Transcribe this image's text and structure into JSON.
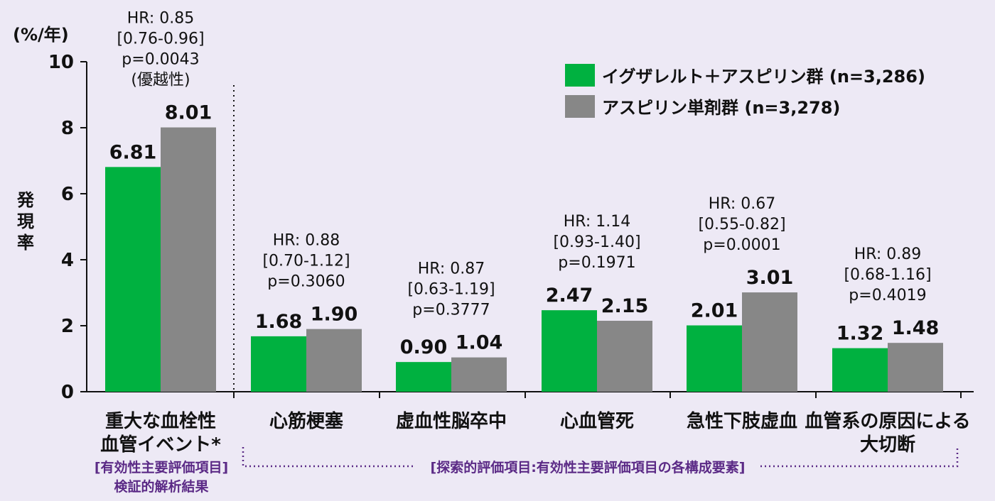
{
  "chart_data": {
    "type": "bar",
    "unit": "(%/年)",
    "ylabel": "発現率",
    "ylim": [
      0,
      10
    ],
    "yticks": [
      "0",
      "2",
      "4",
      "6",
      "8",
      "10"
    ],
    "categories": [
      [
        "重大な血栓性",
        "血管イベント*"
      ],
      [
        "心筋梗塞"
      ],
      [
        "虚血性脳卒中"
      ],
      [
        "心血管死"
      ],
      [
        "急性下肢虚血"
      ],
      [
        "血管系の原因による",
        "大切断"
      ]
    ],
    "series": [
      {
        "name": "イグザレルト＋アスピリン群 (n=3,286)",
        "color": "#00b140",
        "values": [
          6.81,
          1.68,
          0.9,
          2.47,
          2.01,
          1.32
        ],
        "labels": [
          "6.81",
          "1.68",
          "0.90",
          "2.47",
          "2.01",
          "1.32"
        ]
      },
      {
        "name": "アスピリン単剤群 (n=3,278)",
        "color": "#878787",
        "values": [
          8.01,
          1.9,
          1.04,
          2.15,
          3.01,
          1.48
        ],
        "labels": [
          "8.01",
          "1.90",
          "1.04",
          "2.15",
          "3.01",
          "1.48"
        ]
      }
    ],
    "hr_annotations": [
      [
        "HR: 0.85",
        "[0.76-0.96]",
        "p=0.0043",
        "(優越性)"
      ],
      [
        "HR: 0.88",
        "[0.70-1.12]",
        "p=0.3060"
      ],
      [
        "HR: 0.87",
        "[0.63-1.19]",
        "p=0.3777"
      ],
      [
        "HR: 1.14",
        "[0.93-1.40]",
        "p=0.1971"
      ],
      [
        "HR: 0.67",
        "[0.55-0.82]",
        "p=0.0001"
      ],
      [
        "HR: 0.89",
        "[0.68-1.16]",
        "p=0.4019"
      ]
    ],
    "primary_note": [
      "[有効性主要評価項目]",
      "検証的解析結果"
    ],
    "exploratory_note": "[探索的評価項目:有効性主要評価項目の各構成要素]",
    "legend_position": "top-right",
    "grid": false
  }
}
